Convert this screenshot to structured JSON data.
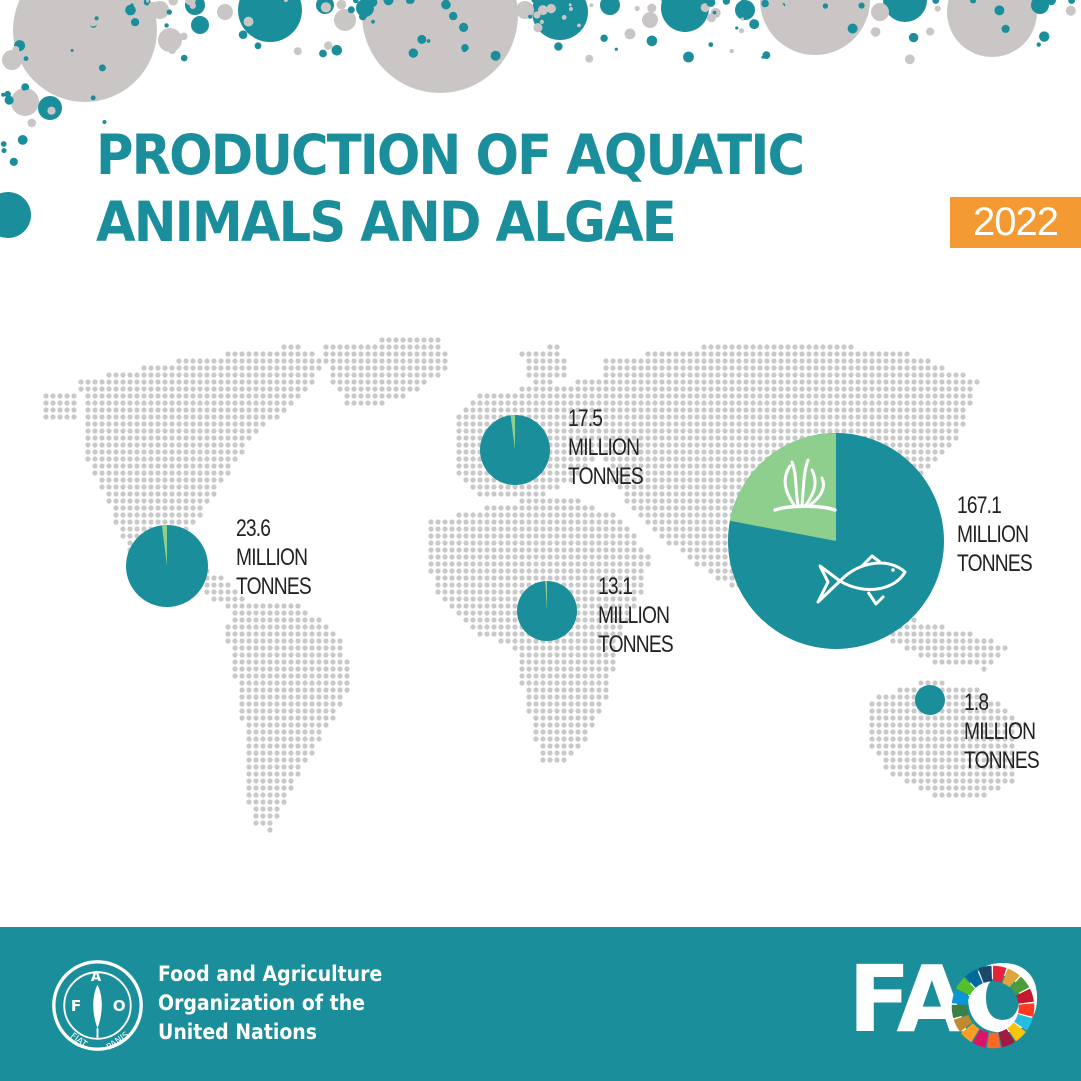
{
  "header": {
    "title_line1": "PRODUCTION OF AQUATIC",
    "title_line2": "ANIMALS AND ALGAE",
    "year": "2022"
  },
  "colors": {
    "teal": "#1a8e9b",
    "light_green": "#8ecf8e",
    "orange": "#f39a32",
    "map_dots": "#c9c9c9",
    "bubble_grey": "#cbc6c6"
  },
  "chart_data": {
    "type": "pie",
    "unit": "MILLION TONNES",
    "categories": [
      "Aquatic animals",
      "Algae"
    ],
    "regions": [
      {
        "total": "23.6",
        "unit_line1": "MILLION",
        "unit_line2": "TONNES",
        "algae_share": 0.02
      },
      {
        "total": "17.5",
        "unit_line1": "MILLION",
        "unit_line2": "TONNES",
        "algae_share": 0.02
      },
      {
        "total": "13.1",
        "unit_line1": "MILLION",
        "unit_line2": "TONNES",
        "algae_share": 0.01
      },
      {
        "total": "167.1",
        "unit_line1": "MILLION",
        "unit_line2": "TONNES",
        "algae_share": 0.22
      },
      {
        "total": "1.8",
        "unit_line1": "MILLION",
        "unit_line2": "TONNES",
        "algae_share": 0.0
      }
    ],
    "icons": [
      "seaweed-icon",
      "fish-icon"
    ]
  },
  "footer": {
    "org_line1": "Food and Agriculture",
    "org_line2": "Organization of the",
    "org_line3": "United Nations",
    "wordmark": "FAO",
    "emblem_letters": [
      "F",
      "A",
      "O"
    ],
    "emblem_motto": [
      "FIAT",
      "PANIS"
    ]
  }
}
